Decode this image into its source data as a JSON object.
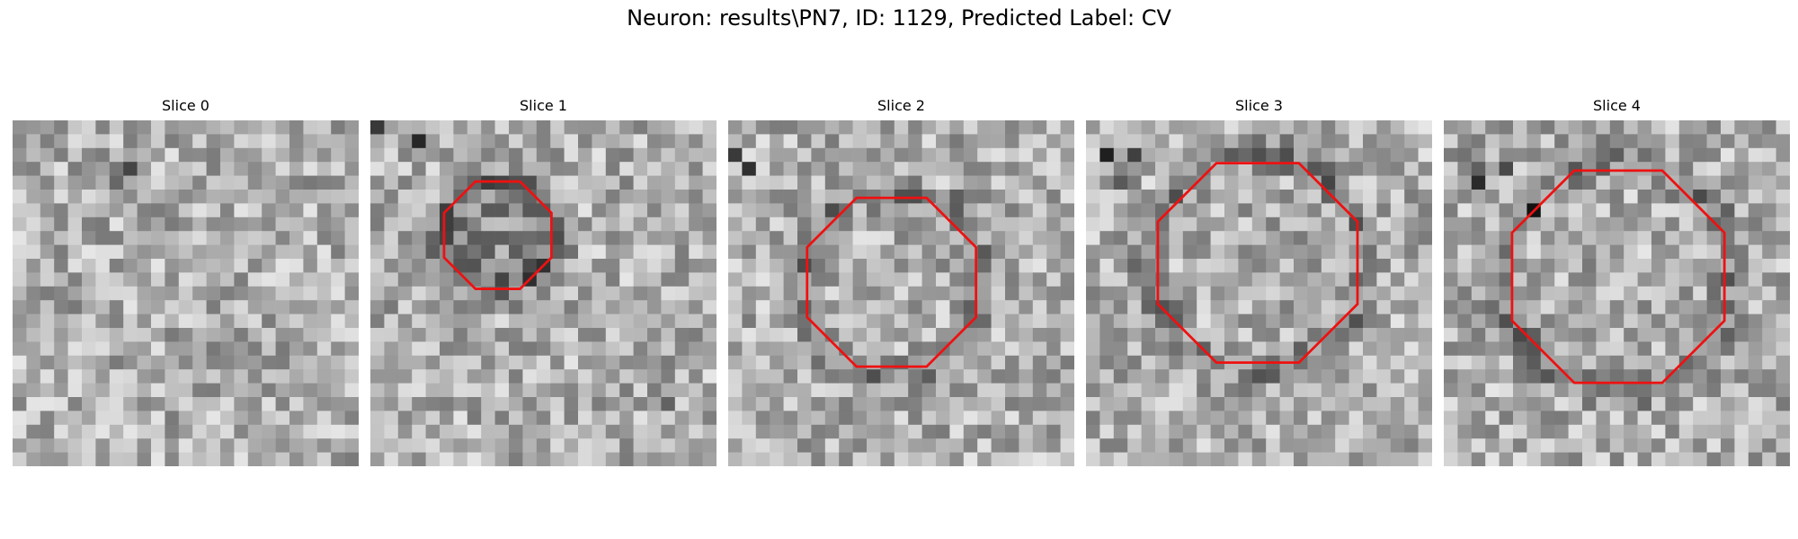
{
  "figure": {
    "title": "Neuron: results\\PN7, ID: 1129, Predicted Label: CV"
  },
  "panels": [
    {
      "title": "Slice 0",
      "contour": null
    },
    {
      "title": "Slice 1",
      "contour": "small octagon"
    },
    {
      "title": "Slice 2",
      "contour": "octagon"
    },
    {
      "title": "Slice 3",
      "contour": "octagon"
    },
    {
      "title": "Slice 4",
      "contour": "large octagon"
    }
  ],
  "colors": {
    "contour": "#ee1111",
    "background": "#ffffff"
  },
  "grid": {
    "cells": 25
  }
}
